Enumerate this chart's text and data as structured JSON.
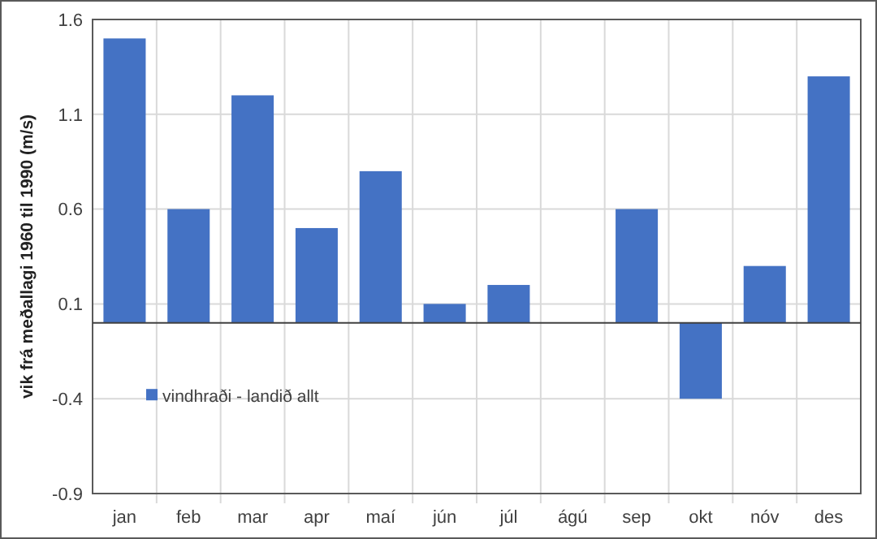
{
  "chart_data": {
    "type": "bar",
    "ylabel": "vik frá meðallagi 1960 til 1990 (m/s)",
    "categories": [
      "jan",
      "feb",
      "mar",
      "apr",
      "maí",
      "jún",
      "júl",
      "ágú",
      "sep",
      "okt",
      "nóv",
      "des"
    ],
    "series": [
      {
        "name": "vindhraði - landið allt",
        "color": "#4472c4",
        "values": [
          1.5,
          0.6,
          1.2,
          0.5,
          0.8,
          0.1,
          0.2,
          0,
          0.6,
          -0.4,
          0.3,
          1.3
        ]
      }
    ],
    "ylim": [
      -0.9,
      1.6
    ],
    "yticks": [
      -0.9,
      -0.4,
      0.1,
      0.6,
      1.1,
      1.6
    ],
    "grid": true,
    "legend": "bottom left"
  }
}
